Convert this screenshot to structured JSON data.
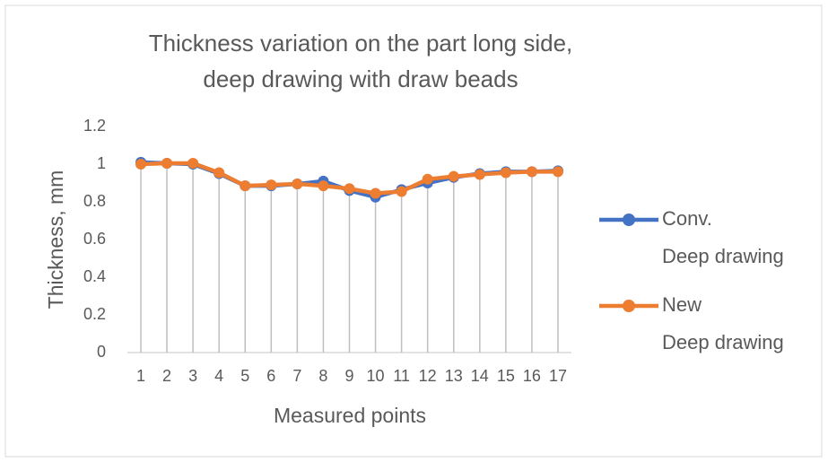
{
  "chart_data": {
    "type": "line",
    "title": [
      "Thickness variation on the part long side,",
      "deep drawing with draw beads"
    ],
    "x_label": "Measured points",
    "y_label": "Thickness, mm",
    "categories": [
      1,
      2,
      3,
      4,
      5,
      6,
      7,
      8,
      9,
      10,
      11,
      12,
      13,
      14,
      15,
      16,
      17
    ],
    "series": [
      {
        "name": "Conv. Deep drawing",
        "color": "#4472c4",
        "values": [
          1.01,
          1.005,
          1.0,
          0.95,
          0.885,
          0.885,
          0.895,
          0.91,
          0.86,
          0.825,
          0.865,
          0.9,
          0.93,
          0.95,
          0.96,
          0.96,
          0.965
        ]
      },
      {
        "name": "New Deep drawing",
        "color": "#ed7d31",
        "values": [
          1.0,
          1.005,
          1.005,
          0.955,
          0.885,
          0.89,
          0.895,
          0.885,
          0.87,
          0.845,
          0.855,
          0.92,
          0.935,
          0.945,
          0.955,
          0.96,
          0.96
        ]
      }
    ],
    "ylim": [
      0,
      1.2
    ],
    "yticks": [
      0,
      0.2,
      0.4,
      0.6,
      0.8,
      1,
      1.2
    ],
    "drop_lines": true,
    "legend": "right"
  }
}
